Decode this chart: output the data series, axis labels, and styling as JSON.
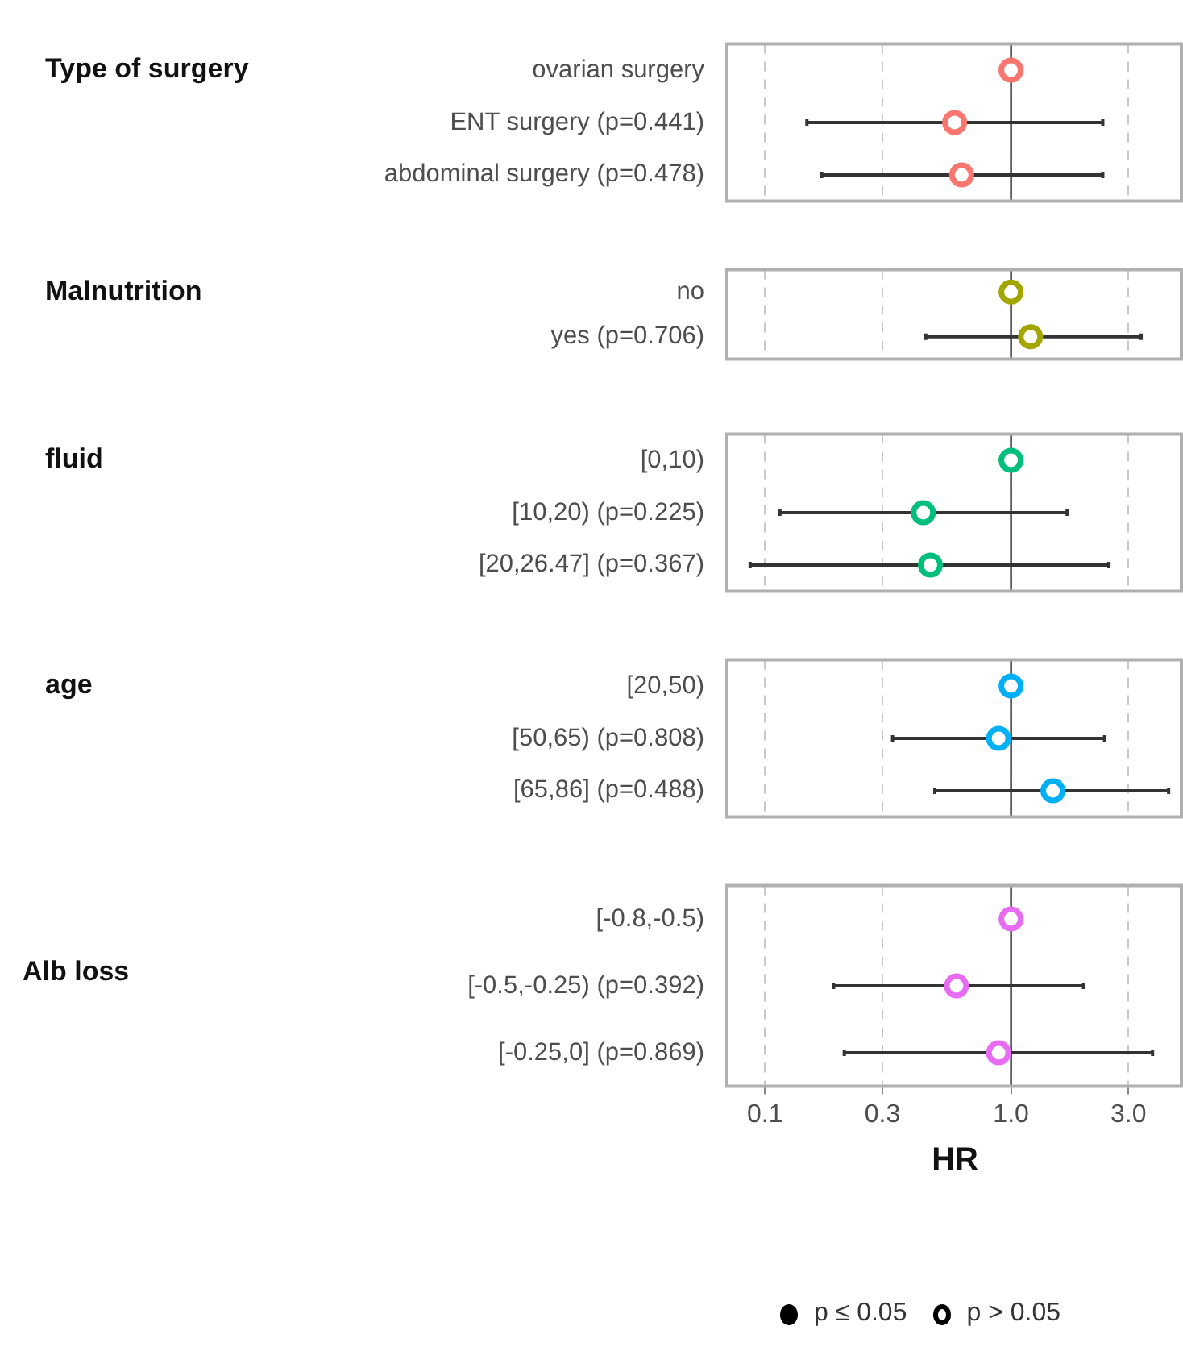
{
  "chart_data": [
    {
      "type": "scatter",
      "ylabel": "Type of surgery",
      "orientation": "horizontal",
      "categories": [
        "ovarian surgery",
        "ENT surgery (p=0.441)",
        "abdominal surgery (p=0.478)"
      ],
      "series": [
        {
          "color": "#f8766d",
          "values": [
            1.0,
            0.59,
            0.63
          ],
          "errors": [
            null,
            [
              0.148,
              2.36
            ],
            [
              0.17,
              2.36
            ]
          ]
        }
      ],
      "log": "x",
      "xlim": [
        0.07,
        5
      ],
      "xticks": [
        0.1,
        0.3,
        1,
        3
      ],
      "tick_labels": "y",
      "grid": "x",
      "marker": "circle",
      "ref_lines": [
        {
          "axis": "x",
          "value": 1,
          "color": "#4d4d4d"
        }
      ]
    },
    {
      "type": "scatter",
      "ylabel": "Malnutrition",
      "orientation": "horizontal",
      "categories": [
        "no",
        "yes (p=0.706)"
      ],
      "series": [
        {
          "color": "#a3a500",
          "values": [
            1.0,
            1.2
          ],
          "errors": [
            null,
            [
              0.45,
              3.38
            ]
          ]
        }
      ],
      "log": "x",
      "xlim": [
        0.07,
        5
      ],
      "xticks": [
        0.1,
        0.3,
        1,
        3
      ],
      "tick_labels": "y",
      "grid": "x",
      "marker": "circle",
      "ref_lines": [
        {
          "axis": "x",
          "value": 1,
          "color": "#4d4d4d"
        }
      ]
    },
    {
      "type": "scatter",
      "ylabel": "fluid",
      "orientation": "horizontal",
      "categories": [
        "[0,10)",
        "[10,20) (p=0.225)",
        "[20,26.47] (p=0.367)"
      ],
      "series": [
        {
          "color": "#00bf7d",
          "values": [
            1.0,
            0.44,
            0.47
          ],
          "errors": [
            null,
            [
              0.115,
              1.69
            ],
            [
              0.087,
              2.5
            ]
          ]
        }
      ],
      "log": "x",
      "xlim": [
        0.07,
        5
      ],
      "xticks": [
        0.1,
        0.3,
        1,
        3
      ],
      "tick_labels": "y",
      "grid": "x",
      "marker": "circle",
      "ref_lines": [
        {
          "axis": "x",
          "value": 1,
          "color": "#4d4d4d"
        }
      ]
    },
    {
      "type": "scatter",
      "ylabel": "age",
      "orientation": "horizontal",
      "categories": [
        "[20,50)",
        "[50,65) (p=0.808)",
        "[65,86] (p=0.488)"
      ],
      "series": [
        {
          "color": "#00b0f6",
          "values": [
            1.0,
            0.89,
            1.48
          ],
          "errors": [
            null,
            [
              0.33,
              2.4
            ],
            [
              0.49,
              4.37
            ]
          ]
        }
      ],
      "log": "x",
      "xlim": [
        0.07,
        5
      ],
      "xticks": [
        0.1,
        0.3,
        1,
        3
      ],
      "tick_labels": "y",
      "grid": "x",
      "marker": "circle",
      "ref_lines": [
        {
          "axis": "x",
          "value": 1,
          "color": "#4d4d4d"
        }
      ]
    },
    {
      "type": "scatter",
      "ylabel": "Alb loss",
      "orientation": "horizontal",
      "xlabel": "HR",
      "categories": [
        "[-0.8,-0.5)",
        "[-0.5,-0.25) (p=0.392)",
        "[-0.25,0] (p=0.869)"
      ],
      "series": [
        {
          "color": "#e76bf3",
          "values": [
            1.0,
            0.6,
            0.89
          ],
          "errors": [
            null,
            [
              0.19,
              1.97
            ],
            [
              0.21,
              3.76
            ]
          ]
        }
      ],
      "log": "x",
      "xlim": [
        0.07,
        5
      ],
      "xticks": [
        0.1,
        0.3,
        {
          "value": 1,
          "label": "1.0"
        },
        {
          "value": 3,
          "label": "3.0"
        }
      ],
      "grid": "x",
      "marker": "circle",
      "ref_lines": [
        {
          "axis": "x",
          "value": 1,
          "color": "#4d4d4d"
        }
      ],
      "annotations": [
        "p ≤ 0.05",
        "p > 0.05"
      ]
    }
  ]
}
